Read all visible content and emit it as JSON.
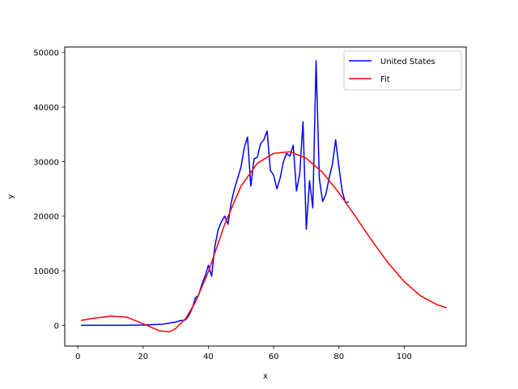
{
  "chart_data": {
    "type": "line",
    "title": "",
    "xlabel": "x",
    "ylabel": "y",
    "xlim": [
      -4,
      119
    ],
    "ylim": [
      -3800,
      51000
    ],
    "xticks": [
      0,
      20,
      40,
      60,
      80,
      100
    ],
    "yticks": [
      0,
      10000,
      20000,
      30000,
      40000,
      50000
    ],
    "grid": false,
    "legend_position": "top-right",
    "series": [
      {
        "name": "United States",
        "color": "#0000ff",
        "x": [
          1,
          5,
          10,
          15,
          18,
          20,
          22,
          24,
          26,
          28,
          30,
          31,
          32,
          33,
          34,
          35,
          36,
          37,
          38,
          39,
          40,
          41,
          42,
          43,
          44,
          45,
          46,
          47,
          48,
          49,
          50,
          51,
          52,
          53,
          54,
          55,
          56,
          57,
          58,
          59,
          60,
          61,
          62,
          63,
          64,
          65,
          66,
          67,
          68,
          69,
          70,
          71,
          72,
          73,
          74,
          75,
          76,
          77,
          78,
          79,
          80,
          81,
          82,
          83
        ],
        "y": [
          0,
          0,
          0,
          0,
          50,
          50,
          100,
          150,
          200,
          400,
          600,
          800,
          900,
          1000,
          1800,
          3000,
          5000,
          5500,
          7500,
          9000,
          11000,
          9000,
          14500,
          17500,
          19000,
          20000,
          18500,
          22500,
          25000,
          27000,
          29000,
          32500,
          34500,
          25500,
          30500,
          30800,
          33300,
          34000,
          35600,
          28400,
          27500,
          25000,
          27000,
          30000,
          31500,
          31000,
          33000,
          24600,
          27800,
          37300,
          17600,
          26500,
          21500,
          48500,
          26900,
          22700,
          24000,
          27000,
          29500,
          34000,
          29000,
          24600,
          22500,
          22600
        ]
      },
      {
        "name": "Fit",
        "color": "#ff0000",
        "x": [
          1,
          5,
          10,
          15,
          20,
          25,
          28,
          30,
          33,
          36,
          40,
          45,
          50,
          55,
          60,
          65,
          70,
          75,
          80,
          85,
          90,
          95,
          100,
          105,
          110,
          113
        ],
        "y": [
          900,
          1300,
          1700,
          1500,
          300,
          -1000,
          -1200,
          -600,
          1200,
          4200,
          9800,
          18500,
          25500,
          29700,
          31500,
          31800,
          30600,
          28000,
          24300,
          20000,
          15600,
          11500,
          8000,
          5400,
          3800,
          3200
        ]
      }
    ]
  }
}
